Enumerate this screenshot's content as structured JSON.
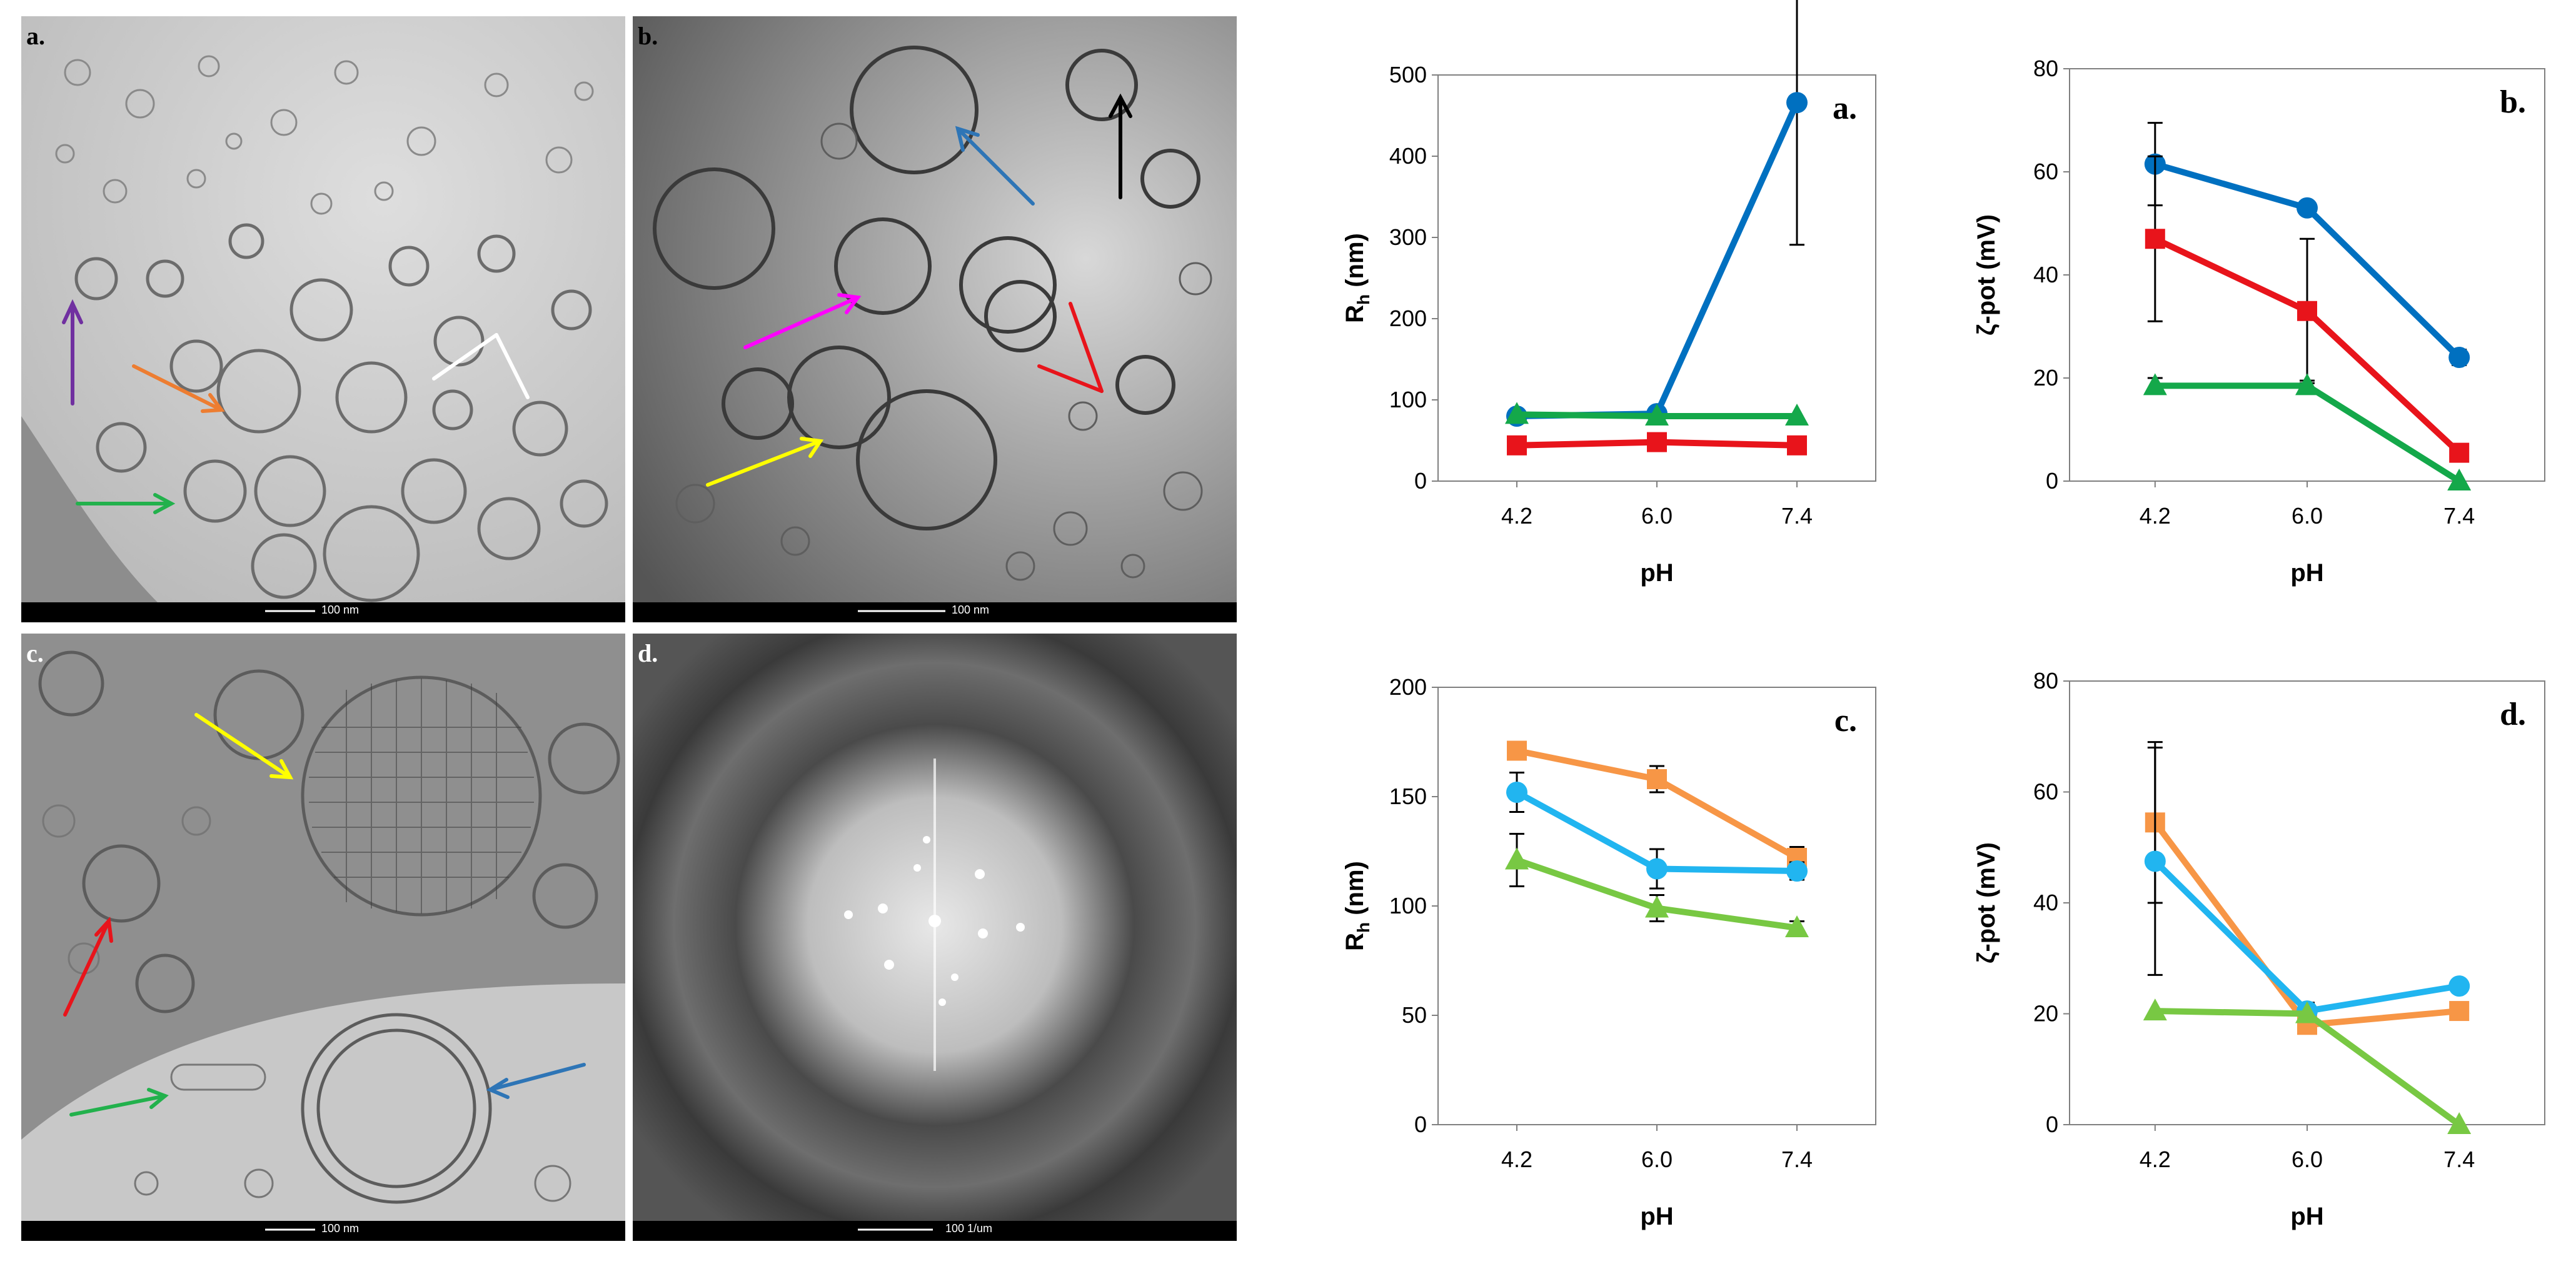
{
  "micrographs": [
    {
      "label": "a.",
      "scalebar": "100 nm"
    },
    {
      "label": "b.",
      "scalebar": "100 nm"
    },
    {
      "label": "c.",
      "scalebar": "100 nm"
    },
    {
      "label": "d.",
      "scalebar": "100 1/um"
    }
  ],
  "colors": {
    "blue": "#0070C0",
    "red": "#E8141B",
    "green": "#14A84A",
    "orange": "#F79646",
    "lightblue": "#21B5F0",
    "lightgreen": "#78C843",
    "axis": "#7f7f7f"
  },
  "chart_data": [
    {
      "label": "a.",
      "type": "line",
      "categories": [
        "4.2",
        "6.0",
        "7.4"
      ],
      "xlabel": "pH",
      "ylabel": "Rh (nm)",
      "ylim": [
        0,
        500
      ],
      "yticks": [
        "0",
        "100",
        "200",
        "300",
        "400",
        "500"
      ],
      "series": [
        {
          "color": "blue",
          "marker": "circle",
          "values": [
            80,
            83,
            466
          ],
          "err": [
            0,
            0,
            175
          ]
        },
        {
          "color": "red",
          "marker": "square",
          "values": [
            44,
            48,
            44
          ],
          "err": [
            0,
            0,
            0
          ]
        },
        {
          "color": "green",
          "marker": "triangle",
          "values": [
            82,
            80,
            80
          ],
          "err": [
            0,
            0,
            0
          ]
        }
      ]
    },
    {
      "label": "b.",
      "type": "line",
      "categories": [
        "4.2",
        "6.0",
        "7.4"
      ],
      "xlabel": "pH",
      "ylabel": "ζ-pot (mV)",
      "ylim": [
        0,
        80
      ],
      "yticks": [
        "0",
        "20",
        "40",
        "60",
        "80"
      ],
      "series": [
        {
          "color": "blue",
          "marker": "circle",
          "values": [
            61.5,
            53,
            24
          ],
          "err": [
            8,
            0,
            1.5
          ]
        },
        {
          "color": "red",
          "marker": "square",
          "values": [
            47,
            33,
            5.5
          ],
          "err": [
            16,
            14,
            0
          ]
        },
        {
          "color": "green",
          "marker": "triangle",
          "values": [
            18.5,
            18.5,
            0
          ],
          "err": [
            1.5,
            1,
            0
          ]
        }
      ]
    },
    {
      "label": "c.",
      "type": "line",
      "categories": [
        "4.2",
        "6.0",
        "7.4"
      ],
      "xlabel": "pH",
      "ylabel": "Rh (nm)",
      "ylim": [
        0,
        200
      ],
      "yticks": [
        "0",
        "50",
        "100",
        "150",
        "200"
      ],
      "series": [
        {
          "color": "orange",
          "marker": "square",
          "values": [
            171,
            158,
            122
          ],
          "err": [
            0,
            6,
            5
          ]
        },
        {
          "color": "lightblue",
          "marker": "circle",
          "values": [
            152,
            117,
            116
          ],
          "err": [
            9,
            9,
            4
          ]
        },
        {
          "color": "lightgreen",
          "marker": "triangle",
          "values": [
            121,
            99,
            90
          ],
          "err": [
            12,
            6,
            3
          ]
        }
      ]
    },
    {
      "label": "d.",
      "type": "line",
      "categories": [
        "4.2",
        "6.0",
        "7.4"
      ],
      "xlabel": "pH",
      "ylabel": "ζ-pot (mV)",
      "ylim": [
        0,
        80
      ],
      "yticks": [
        "0",
        "20",
        "40",
        "60",
        "80"
      ],
      "series": [
        {
          "color": "orange",
          "marker": "square",
          "values": [
            54.5,
            18,
            20.5
          ],
          "err": [
            14.5,
            1.5,
            0
          ]
        },
        {
          "color": "lightblue",
          "marker": "circle",
          "values": [
            47.5,
            20.5,
            25
          ],
          "err": [
            20.5,
            1.5,
            0
          ]
        },
        {
          "color": "lightgreen",
          "marker": "triangle",
          "values": [
            20.5,
            20,
            0
          ],
          "err": [
            0,
            0,
            0
          ]
        }
      ]
    }
  ]
}
